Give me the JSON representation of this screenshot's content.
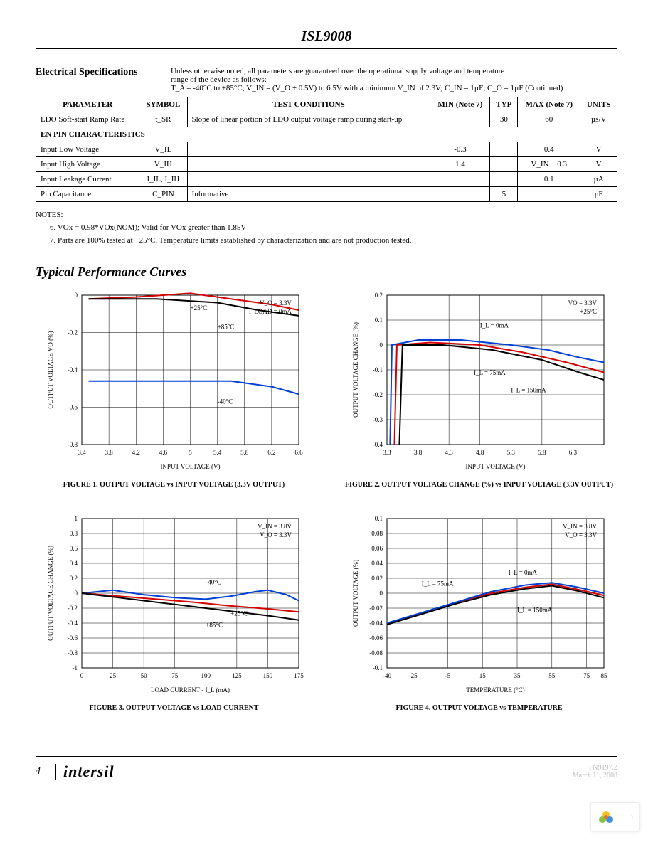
{
  "part_title": "ISL9008",
  "spec": {
    "heading": "Electrical Specifications",
    "note_line1": "Unless otherwise noted, all parameters are guaranteed over the operational supply voltage and temperature",
    "note_line2": "range of the device as follows:",
    "note_line3": "T_A = -40°C to +85°C; V_IN = (V_O + 0.5V) to 6.5V with a minimum V_IN of 2.3V; C_IN = 1µF; C_O = 1µF (Continued)"
  },
  "table": {
    "headers": [
      "PARAMETER",
      "SYMBOL",
      "TEST CONDITIONS",
      "MIN (Note 7)",
      "TYP",
      "MAX (Note 7)",
      "UNITS"
    ],
    "rows": [
      {
        "cells": [
          "LDO Soft-start Ramp Rate",
          "t_SR",
          "Slope of linear portion of LDO output voltage ramp during start-up",
          "",
          "30",
          "60",
          "µs/V"
        ]
      },
      {
        "section": "EN PIN CHARACTERISTICS"
      },
      {
        "cells": [
          "Input Low Voltage",
          "V_IL",
          "",
          "-0.3",
          "",
          "0.4",
          "V"
        ]
      },
      {
        "cells": [
          "Input High Voltage",
          "V_IH",
          "",
          "1.4",
          "",
          "V_IN + 0.3",
          "V"
        ]
      },
      {
        "cells": [
          "Input Leakage Current",
          "I_IL, I_IH",
          "",
          "",
          "",
          "0.1",
          "µA"
        ]
      },
      {
        "cells": [
          "Pin Capacitance",
          "C_PIN",
          "Informative",
          "",
          "5",
          "",
          "pF"
        ]
      }
    ]
  },
  "notes": {
    "heading": "NOTES:",
    "n6": "6. VOx = 0.98*VOx(NOM); Valid for VOx greater than 1.85V",
    "n7": "7. Parts are 100% tested at +25°C. Temperature limits established by characterization and are not production tested."
  },
  "curves_heading": "Typical Performance Curves",
  "fig1": {
    "type": "line",
    "caption": "FIGURE 1. OUTPUT VOLTAGE vs INPUT VOLTAGE (3.3V OUTPUT)",
    "xlabel": "INPUT VOLTAGE (V)",
    "ylabel": "OUTPUT VOLTAGE VO (%)",
    "xlim": [
      3.4,
      6.6
    ],
    "ylim": [
      -0.8,
      0.0
    ],
    "xticks": [
      3.4,
      3.8,
      4.2,
      4.6,
      5.0,
      5.4,
      5.8,
      6.2,
      6.6
    ],
    "yticks": [
      0.0,
      -0.2,
      -0.4,
      -0.6,
      -0.8
    ],
    "annot": [
      "V_O = 3.3V",
      "I_LOAD = 0mA"
    ],
    "series": [
      {
        "name": "+25°C",
        "color": "#d40000",
        "width": 2,
        "pts": [
          [
            3.5,
            -0.02
          ],
          [
            4.2,
            -0.01
          ],
          [
            5.0,
            0.01
          ],
          [
            5.6,
            -0.02
          ],
          [
            6.2,
            -0.05
          ],
          [
            6.6,
            -0.08
          ]
        ]
      },
      {
        "name": "+85°C",
        "color": "#000000",
        "width": 2,
        "pts": [
          [
            3.5,
            -0.02
          ],
          [
            4.5,
            -0.02
          ],
          [
            5.4,
            -0.04
          ],
          [
            6.0,
            -0.08
          ],
          [
            6.6,
            -0.11
          ]
        ]
      },
      {
        "name": "-40°C",
        "color": "#0040d4",
        "width": 2,
        "pts": [
          [
            3.5,
            -0.46
          ],
          [
            4.5,
            -0.46
          ],
          [
            5.6,
            -0.46
          ],
          [
            6.2,
            -0.49
          ],
          [
            6.6,
            -0.53
          ]
        ]
      }
    ],
    "line_labels": [
      {
        "text": "+25°C",
        "x": 5.0,
        "y": -0.08
      },
      {
        "text": "+85°C",
        "x": 5.4,
        "y": -0.18
      },
      {
        "text": "-40°C",
        "x": 5.4,
        "y": -0.58
      }
    ],
    "grid_color": "#000",
    "bg": "#ffffff",
    "label_fontsize": 9
  },
  "fig2": {
    "type": "line",
    "caption": "FIGURE 2. OUTPUT VOLTAGE CHANGE (%) vs INPUT VOLTAGE (3.3V OUTPUT)",
    "xlabel": "INPUT VOLTAGE (V)",
    "ylabel": "OUTPUT VOLTAGE CHANGE (%)",
    "xlim": [
      3.3,
      6.8
    ],
    "ylim": [
      -0.4,
      0.2
    ],
    "xticks": [
      3.3,
      3.8,
      4.3,
      4.8,
      5.3,
      5.8,
      6.3
    ],
    "yticks": [
      0.2,
      0.1,
      0.0,
      -0.1,
      -0.2,
      -0.3,
      -0.4
    ],
    "annot": [
      "VO = 3.3V",
      "+25°C"
    ],
    "series": [
      {
        "name": "0mA",
        "color": "#0040d4",
        "width": 2,
        "pts": [
          [
            3.35,
            -0.4
          ],
          [
            3.38,
            0.0
          ],
          [
            3.8,
            0.02
          ],
          [
            4.5,
            0.02
          ],
          [
            5.3,
            0.0
          ],
          [
            5.9,
            -0.02
          ],
          [
            6.4,
            -0.05
          ],
          [
            6.8,
            -0.07
          ]
        ]
      },
      {
        "name": "75mA",
        "color": "#d40000",
        "width": 2,
        "pts": [
          [
            3.42,
            -0.4
          ],
          [
            3.46,
            0.0
          ],
          [
            4.0,
            0.01
          ],
          [
            4.8,
            0.0
          ],
          [
            5.5,
            -0.03
          ],
          [
            6.2,
            -0.07
          ],
          [
            6.8,
            -0.11
          ]
        ]
      },
      {
        "name": "150mA",
        "color": "#000000",
        "width": 2,
        "pts": [
          [
            3.5,
            -0.4
          ],
          [
            3.55,
            0.0
          ],
          [
            4.2,
            0.0
          ],
          [
            5.0,
            -0.02
          ],
          [
            5.8,
            -0.06
          ],
          [
            6.4,
            -0.11
          ],
          [
            6.8,
            -0.14
          ]
        ]
      }
    ],
    "line_labels": [
      {
        "text": "I_L = 0mA",
        "x": 4.8,
        "y": 0.07
      },
      {
        "text": "I_L = 75mA",
        "x": 4.7,
        "y": -0.12
      },
      {
        "text": "I_L = 150mA",
        "x": 5.3,
        "y": -0.19
      }
    ],
    "grid_color": "#000",
    "bg": "#ffffff",
    "label_fontsize": 9
  },
  "fig3": {
    "type": "line",
    "caption": "FIGURE 3. OUTPUT VOLTAGE vs LOAD CURRENT",
    "xlabel": "LOAD CURRENT - I_L (mA)",
    "ylabel": "OUTPUT VOLTAGE CHANGE (%)",
    "xlim": [
      0,
      175
    ],
    "ylim": [
      -1.0,
      1.0
    ],
    "xticks": [
      0,
      25,
      50,
      75,
      100,
      125,
      150,
      175
    ],
    "yticks": [
      1.0,
      0.8,
      0.6,
      0.4,
      0.2,
      0.0,
      -0.2,
      -0.4,
      -0.6,
      -0.8,
      -1.0
    ],
    "annot": [
      "V_IN = 3.8V",
      "V_O = 3.3V"
    ],
    "series": [
      {
        "name": "-40°C",
        "color": "#0040d4",
        "width": 2,
        "pts": [
          [
            0,
            0.0
          ],
          [
            25,
            0.04
          ],
          [
            50,
            -0.02
          ],
          [
            75,
            -0.06
          ],
          [
            100,
            -0.08
          ],
          [
            120,
            -0.04
          ],
          [
            140,
            0.02
          ],
          [
            150,
            0.04
          ],
          [
            165,
            -0.02
          ],
          [
            175,
            -0.1
          ]
        ]
      },
      {
        "name": "+25°C",
        "color": "#d40000",
        "width": 2,
        "pts": [
          [
            0,
            0.0
          ],
          [
            30,
            -0.04
          ],
          [
            60,
            -0.08
          ],
          [
            90,
            -0.12
          ],
          [
            120,
            -0.17
          ],
          [
            150,
            -0.21
          ],
          [
            175,
            -0.25
          ]
        ]
      },
      {
        "name": "+85°C",
        "color": "#000000",
        "width": 2,
        "pts": [
          [
            0,
            0.0
          ],
          [
            30,
            -0.06
          ],
          [
            60,
            -0.12
          ],
          [
            90,
            -0.18
          ],
          [
            120,
            -0.24
          ],
          [
            150,
            -0.3
          ],
          [
            175,
            -0.36
          ]
        ]
      }
    ],
    "line_labels": [
      {
        "text": "-40°C",
        "x": 100,
        "y": 0.12
      },
      {
        "text": "+25°C",
        "x": 120,
        "y": -0.3
      },
      {
        "text": "+85°C",
        "x": 100,
        "y": -0.45
      }
    ],
    "grid_color": "#000",
    "bg": "#ffffff",
    "label_fontsize": 9
  },
  "fig4": {
    "type": "line",
    "caption": "FIGURE 4. OUTPUT VOLTAGE vs TEMPERATURE",
    "xlabel": "TEMPERATURE (°C)",
    "ylabel": "OUTPUT VOLTAGE (%)",
    "xlim": [
      -40,
      85
    ],
    "ylim": [
      -0.1,
      0.1
    ],
    "xticks": [
      -40,
      -25,
      -5,
      15,
      35,
      55,
      75,
      85
    ],
    "yticks": [
      0.1,
      0.08,
      0.06,
      0.04,
      0.02,
      0.0,
      -0.02,
      -0.04,
      -0.06,
      -0.08,
      -0.1
    ],
    "annot": [
      "V_IN = 3.8V",
      "V_O = 3.3V"
    ],
    "series": [
      {
        "name": "75mA",
        "color": "#d40000",
        "width": 2,
        "pts": [
          [
            -40,
            -0.04
          ],
          [
            -20,
            -0.027
          ],
          [
            0,
            -0.012
          ],
          [
            20,
            0.0
          ],
          [
            40,
            0.008
          ],
          [
            55,
            0.012
          ],
          [
            70,
            0.005
          ],
          [
            85,
            -0.003
          ]
        ]
      },
      {
        "name": "0mA",
        "color": "#0040d4",
        "width": 2,
        "pts": [
          [
            -40,
            -0.04
          ],
          [
            -20,
            -0.026
          ],
          [
            0,
            -0.012
          ],
          [
            20,
            0.002
          ],
          [
            40,
            0.011
          ],
          [
            55,
            0.014
          ],
          [
            70,
            0.008
          ],
          [
            85,
            0.0
          ]
        ]
      },
      {
        "name": "150mA",
        "color": "#000000",
        "width": 2,
        "pts": [
          [
            -40,
            -0.042
          ],
          [
            -20,
            -0.028
          ],
          [
            0,
            -0.014
          ],
          [
            20,
            -0.002
          ],
          [
            40,
            0.006
          ],
          [
            55,
            0.01
          ],
          [
            70,
            0.003
          ],
          [
            85,
            -0.006
          ]
        ]
      }
    ],
    "line_labels": [
      {
        "text": "I_L = 75mA",
        "x": -20,
        "y": 0.01
      },
      {
        "text": "I_L = 0mA",
        "x": 30,
        "y": 0.025
      },
      {
        "text": "I_L = 150mA",
        "x": 35,
        "y": -0.025
      }
    ],
    "grid_color": "#000",
    "bg": "#ffffff",
    "label_fontsize": 9
  },
  "footer": {
    "page": "4",
    "brand": "intersil",
    "doc": "FN9197.2",
    "date": "March 11, 2008"
  }
}
